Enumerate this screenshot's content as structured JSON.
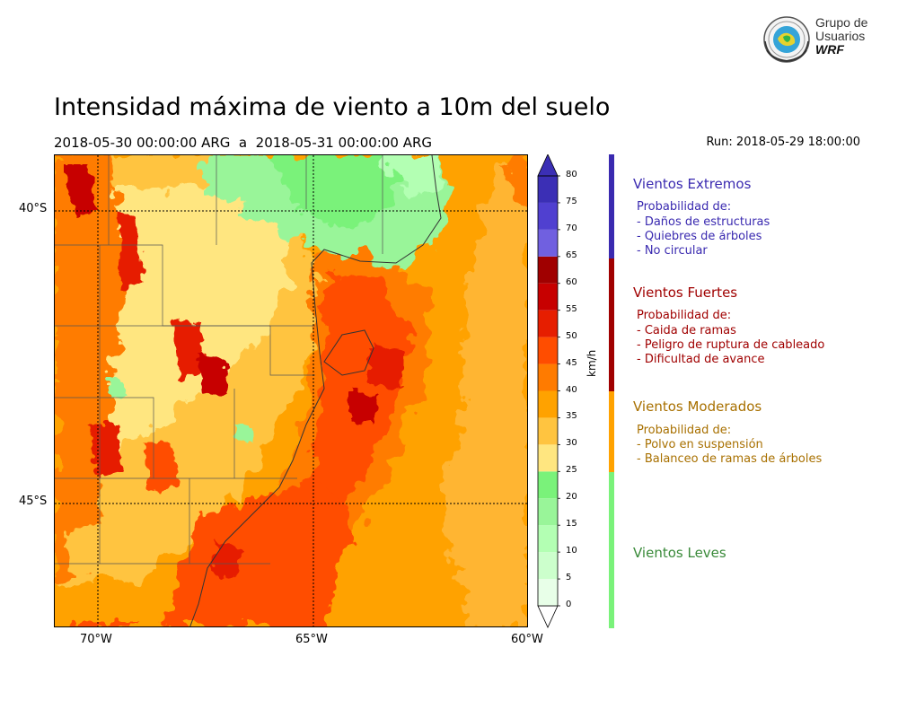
{
  "header": {
    "title": "Intensidad máxima de viento a 10m del suelo",
    "period": "2018-05-30 00:00:00 ARG  a  2018-05-31 00:00:00 ARG",
    "run": "Run: 2018-05-29 18:00:00"
  },
  "logo": {
    "line1": "Grupo de",
    "line2": "Usuarios",
    "line3": "WRF",
    "icon": "wrf-globe-seal-icon"
  },
  "map": {
    "lat_labels": [
      "40°S",
      "45°S"
    ],
    "lon_labels": [
      "70°W",
      "65°W",
      "60°W"
    ]
  },
  "colorbar": {
    "unit": "km/h",
    "ticks": [
      "0",
      "5",
      "10",
      "15",
      "20",
      "25",
      "30",
      "35",
      "40",
      "45",
      "50",
      "55",
      "60",
      "65",
      "70",
      "75",
      "80"
    ],
    "colors": [
      "#e8ffe8",
      "#ccffcc",
      "#b3ffb3",
      "#99f599",
      "#7af27a",
      "#ffe680",
      "#ffc440",
      "#ffa200",
      "#ff7b00",
      "#ff4d00",
      "#e61e00",
      "#c70000",
      "#a00000",
      "#7060e0",
      "#5040d0",
      "#3b2fb5"
    ]
  },
  "categories": [
    {
      "title": "Vientos Extremos",
      "color": "#3a2ab0",
      "lines": [
        "Probabilidad de:",
        "- Daños de estructuras",
        "- Quiebres de árboles",
        "- No circular"
      ]
    },
    {
      "title": "Vientos Fuertes",
      "color": "#a00000",
      "lines": [
        "Probabilidad de:",
        "- Caida de ramas",
        "- Peligro de ruptura de cableado",
        "- Dificultad de avance"
      ]
    },
    {
      "title": "Vientos Moderados",
      "color": "#a87000",
      "lines": [
        "Probabilidad de:",
        "- Polvo en suspensión",
        "- Balanceo de ramas de árboles"
      ]
    },
    {
      "title": "Vientos Leves",
      "color": "#3a8a3a",
      "lines": []
    }
  ],
  "category_bar_colors": [
    "#3a2ab0",
    "#a00000",
    "#ffa200",
    "#7af27a"
  ]
}
